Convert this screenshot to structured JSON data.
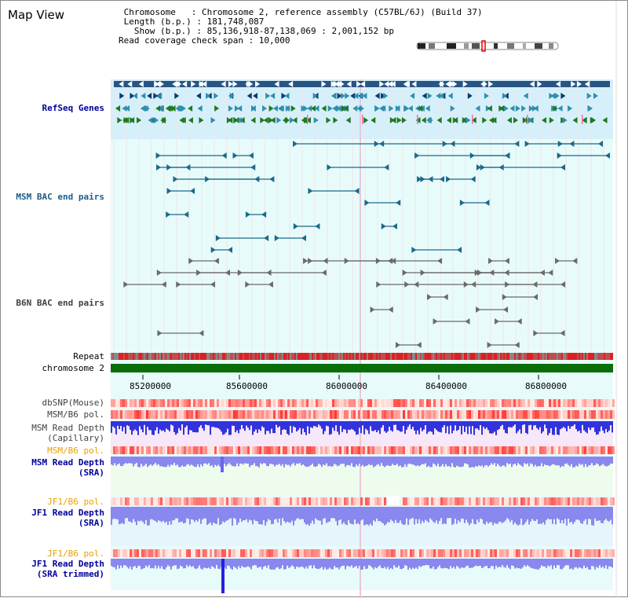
{
  "header": {
    "title": "Map View",
    "info_lines": [
      " Chromosome   : Chromosome 2, reference assembly (C57BL/6J) (Build 37)",
      " Length (b.p.) : 181,748,087",
      "   Show (b.p.) : 85,136,918-87,138,069 : 2,001,152 bp",
      "Read coverage check span : 10,000"
    ]
  },
  "tracks": [
    {
      "key": "refseq",
      "label": "RefSeq Genes",
      "color": "#00009c"
    },
    {
      "key": "msm_bac",
      "label": "MSM BAC end pairs",
      "color": "#1a5c8a"
    },
    {
      "key": "b6n_bac",
      "label": "B6N BAC end pairs",
      "color": "#404040"
    },
    {
      "key": "repeat",
      "label": "Repeat",
      "color": "#000000"
    },
    {
      "key": "chrom",
      "label": "chromosome 2",
      "color": "#000000"
    },
    {
      "key": "dbsnp",
      "label": "dbSNP(Mouse)",
      "color": "#404040"
    },
    {
      "key": "msm_pol",
      "label": "MSM/B6 pol.",
      "color": "#404040"
    },
    {
      "key": "msm_depth_cap",
      "label": "MSM Read Depth\n(Capillary)",
      "color": "#404040"
    },
    {
      "key": "msm_pol2",
      "label": "MSM/B6 pol.",
      "color": "#e8a000"
    },
    {
      "key": "msm_depth_sra",
      "label": "MSM Read Depth\n(SRA)",
      "color": "#00009c"
    },
    {
      "key": "jf1_pol",
      "label": "JF1/B6 pol.",
      "color": "#e8a000"
    },
    {
      "key": "jf1_depth",
      "label": "JF1 Read Depth\n(SRA)",
      "color": "#00009c"
    },
    {
      "key": "jf1_pol2",
      "label": "JF1/B6 pol.",
      "color": "#e8a000"
    },
    {
      "key": "jf1_depth_trim",
      "label": "JF1 Read Depth\n(SRA trimmed)",
      "color": "#00009c"
    }
  ],
  "axis": {
    "ticks": [
      "85200000",
      "85600000",
      "86000000",
      "86400000",
      "86800000"
    ]
  },
  "colors": {
    "gene_dark": "#0b3a6e",
    "gene_teal": "#2f8fb0",
    "gene_green": "#1f7a1f",
    "msm_bac": "#1a6a8a",
    "b6n_bac": "#6a6a6a",
    "chrom": "#0a6e0a",
    "depth_blue": "#3333dd",
    "depth_light": "#8888ee"
  }
}
